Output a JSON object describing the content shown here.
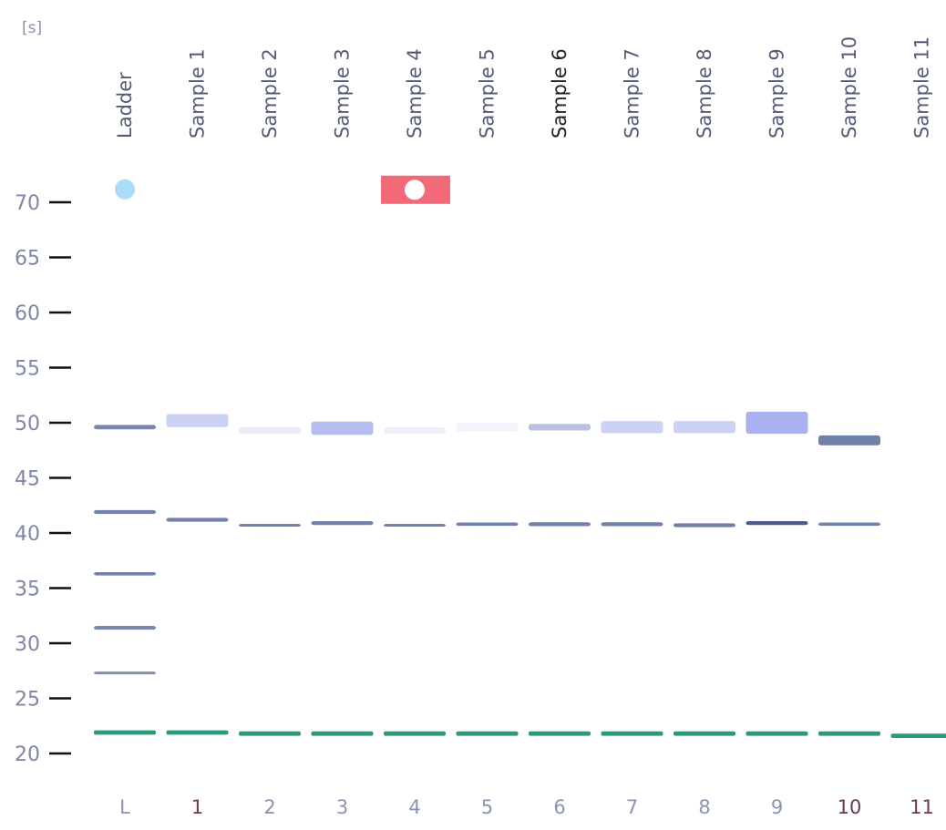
{
  "chart_data": {
    "type": "gel",
    "unit": "[s]",
    "y_ticks": [
      70,
      65,
      60,
      55,
      50,
      45,
      40,
      35,
      30,
      25,
      20
    ],
    "ylim": [
      20,
      70
    ],
    "lanes": [
      {
        "name": "Ladder",
        "number": "L",
        "bands": [
          {
            "y": 49.6,
            "color": "#6a7aa4",
            "intensity": 0.9,
            "width": 0.4
          },
          {
            "y": 41.9,
            "color": "#6a7aa4",
            "intensity": 0.95,
            "width": 0.35
          },
          {
            "y": 36.3,
            "color": "#6a7aa4",
            "intensity": 0.95,
            "width": 0.3
          },
          {
            "y": 31.4,
            "color": "#6a7aa4",
            "intensity": 0.9,
            "width": 0.35
          },
          {
            "y": 27.3,
            "color": "#6a7aa4",
            "intensity": 0.85,
            "width": 0.2
          },
          {
            "y": 21.9,
            "color": "#2a9a7e",
            "intensity": 1.0,
            "width": 0.4
          }
        ]
      },
      {
        "name": "Sample 1",
        "number": "1",
        "bands": [
          {
            "y": 50.2,
            "color": "#b7bff0",
            "intensity": 0.7,
            "width": 1.2
          },
          {
            "y": 41.2,
            "color": "#6a7aa4",
            "intensity": 0.95,
            "width": 0.35
          },
          {
            "y": 21.9,
            "color": "#2a9a7e",
            "intensity": 1.0,
            "width": 0.4
          }
        ]
      },
      {
        "name": "Sample 2",
        "number": "2",
        "bands": [
          {
            "y": 49.3,
            "color": "#d4d8f4",
            "intensity": 0.5,
            "width": 0.6
          },
          {
            "y": 40.7,
            "color": "#6a7aa4",
            "intensity": 0.95,
            "width": 0.25
          },
          {
            "y": 21.8,
            "color": "#2a9a7e",
            "intensity": 1.0,
            "width": 0.4
          }
        ]
      },
      {
        "name": "Sample 3",
        "number": "3",
        "bands": [
          {
            "y": 49.5,
            "color": "#a3acec",
            "intensity": 0.8,
            "width": 1.2
          },
          {
            "y": 40.9,
            "color": "#6a7aa4",
            "intensity": 0.95,
            "width": 0.35
          },
          {
            "y": 21.8,
            "color": "#2a9a7e",
            "intensity": 1.0,
            "width": 0.4
          }
        ]
      },
      {
        "name": "Sample 4",
        "number": "4",
        "bands": [
          {
            "y": 49.3,
            "color": "#dde0f6",
            "intensity": 0.5,
            "width": 0.6
          },
          {
            "y": 40.7,
            "color": "#6a7aa4",
            "intensity": 0.95,
            "width": 0.25
          },
          {
            "y": 21.8,
            "color": "#2a9a7e",
            "intensity": 1.0,
            "width": 0.4
          }
        ]
      },
      {
        "name": "Sample 5",
        "number": "5",
        "bands": [
          {
            "y": 49.6,
            "color": "#e6e8f8",
            "intensity": 0.5,
            "width": 0.8
          },
          {
            "y": 40.8,
            "color": "#6a7aa4",
            "intensity": 0.95,
            "width": 0.3
          },
          {
            "y": 21.8,
            "color": "#2a9a7e",
            "intensity": 1.0,
            "width": 0.4
          }
        ]
      },
      {
        "name": "Sample 6",
        "number": "6",
        "bands": [
          {
            "y": 49.6,
            "color": "#a9b0d8",
            "intensity": 0.8,
            "width": 0.6
          },
          {
            "y": 40.8,
            "color": "#6a7aa4",
            "intensity": 0.95,
            "width": 0.35
          },
          {
            "y": 21.8,
            "color": "#2a9a7e",
            "intensity": 1.0,
            "width": 0.4
          }
        ]
      },
      {
        "name": "Sample 7",
        "number": "7",
        "bands": [
          {
            "y": 49.6,
            "color": "#b7bff0",
            "intensity": 0.7,
            "width": 1.1
          },
          {
            "y": 40.8,
            "color": "#6a7aa4",
            "intensity": 0.95,
            "width": 0.35
          },
          {
            "y": 21.8,
            "color": "#2a9a7e",
            "intensity": 1.0,
            "width": 0.4
          }
        ]
      },
      {
        "name": "Sample 8",
        "number": "8",
        "bands": [
          {
            "y": 49.6,
            "color": "#b7bff0",
            "intensity": 0.7,
            "width": 1.1
          },
          {
            "y": 40.7,
            "color": "#6a7aa4",
            "intensity": 0.95,
            "width": 0.35
          },
          {
            "y": 21.8,
            "color": "#2a9a7e",
            "intensity": 1.0,
            "width": 0.4
          }
        ]
      },
      {
        "name": "Sample 9",
        "number": "9",
        "bands": [
          {
            "y": 50.0,
            "color": "#9aa3ee",
            "intensity": 0.85,
            "width": 2.0
          },
          {
            "y": 40.9,
            "color": "#4c5b8c",
            "intensity": 1.0,
            "width": 0.35
          },
          {
            "y": 21.8,
            "color": "#2a9a7e",
            "intensity": 1.0,
            "width": 0.4
          }
        ]
      },
      {
        "name": "Sample 10",
        "number": "10",
        "bands": [
          {
            "y": 48.4,
            "color": "#6a7aa4",
            "intensity": 0.95,
            "width": 0.9
          },
          {
            "y": 40.8,
            "color": "#6a7aa4",
            "intensity": 0.95,
            "width": 0.3
          },
          {
            "y": 21.8,
            "color": "#2a9a7e",
            "intensity": 1.0,
            "width": 0.4
          }
        ]
      },
      {
        "name": "Sample 11",
        "number": "11",
        "bands": [
          {
            "y": 21.6,
            "color": "#2a9a7e",
            "intensity": 1.0,
            "width": 0.4
          }
        ]
      }
    ],
    "markers": [
      {
        "lane": 0,
        "y": 70.1,
        "type": "ladder-dot",
        "color": "#a9dcf6"
      },
      {
        "lane": 4,
        "y": 70.1,
        "type": "flag",
        "color": "#f26a78"
      }
    ],
    "emphasized_label_lane": 6,
    "maroon_number_lanes": [
      1,
      10,
      11
    ],
    "grid": false
  }
}
